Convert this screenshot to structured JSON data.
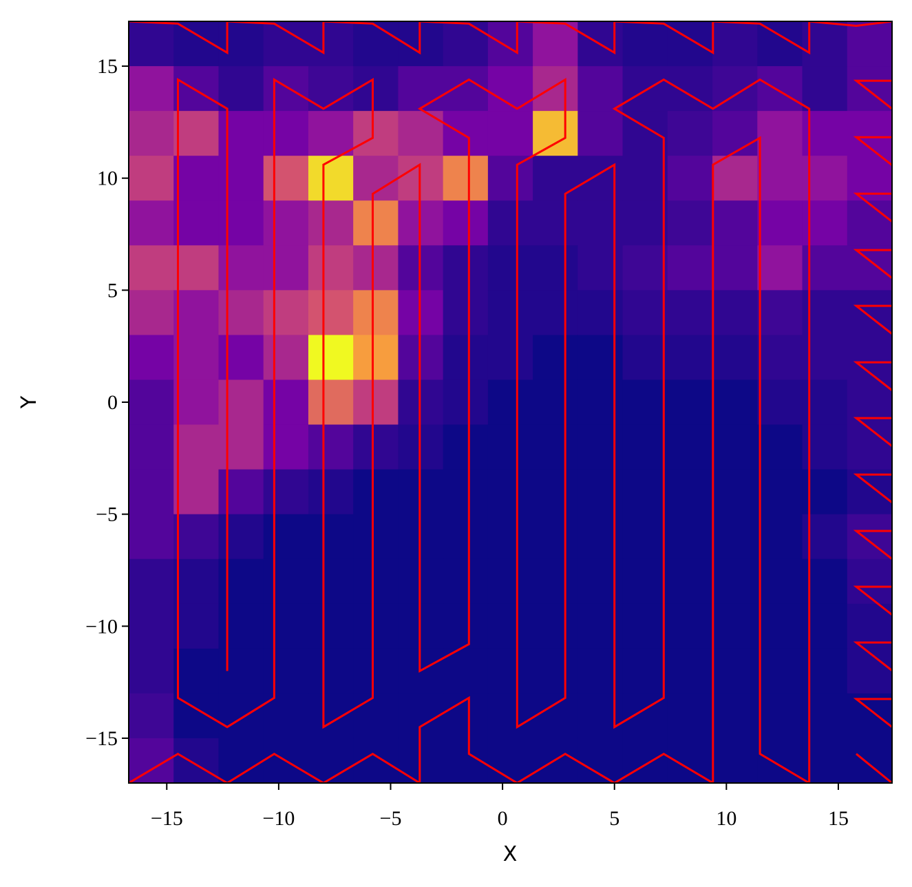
{
  "chart_data": {
    "type": "heatmap",
    "xlabel": "X",
    "ylabel": "Y",
    "xlim": [
      -16.7,
      17.4
    ],
    "ylim": [
      -17,
      17
    ],
    "xticks": [
      {
        "value": -15,
        "label": "−15"
      },
      {
        "value": -10,
        "label": "−10"
      },
      {
        "value": -5,
        "label": "−5"
      },
      0,
      5,
      10,
      15
    ],
    "yticks": [
      {
        "value": -15,
        "label": "−15"
      },
      {
        "value": -10,
        "label": "−10"
      },
      {
        "value": -5,
        "label": "−5"
      },
      0,
      5,
      10,
      15
    ],
    "colormap": "plasma",
    "z": [
      [
        0.1,
        0.08,
        0.08,
        0.1,
        0.1,
        0.08,
        0.08,
        0.1,
        0.15,
        0.25,
        0.1,
        0.08,
        0.08,
        0.1,
        0.08,
        0.1,
        0.15
      ],
      [
        0.25,
        0.15,
        0.1,
        0.15,
        0.12,
        0.1,
        0.15,
        0.15,
        0.2,
        0.3,
        0.15,
        0.1,
        0.1,
        0.12,
        0.15,
        0.1,
        0.15
      ],
      [
        0.3,
        0.35,
        0.2,
        0.2,
        0.25,
        0.35,
        0.3,
        0.2,
        0.2,
        0.6,
        0.15,
        0.1,
        0.12,
        0.15,
        0.25,
        0.2,
        0.2
      ],
      [
        0.35,
        0.2,
        0.2,
        0.4,
        0.65,
        0.3,
        0.35,
        0.5,
        0.15,
        0.1,
        0.1,
        0.1,
        0.15,
        0.3,
        0.25,
        0.25,
        0.2
      ],
      [
        0.25,
        0.2,
        0.2,
        0.25,
        0.3,
        0.5,
        0.25,
        0.2,
        0.1,
        0.1,
        0.1,
        0.1,
        0.12,
        0.15,
        0.2,
        0.2,
        0.15
      ],
      [
        0.35,
        0.35,
        0.25,
        0.25,
        0.35,
        0.3,
        0.15,
        0.1,
        0.08,
        0.08,
        0.1,
        0.12,
        0.15,
        0.15,
        0.25,
        0.15,
        0.15
      ],
      [
        0.3,
        0.25,
        0.3,
        0.35,
        0.4,
        0.5,
        0.2,
        0.1,
        0.08,
        0.08,
        0.08,
        0.1,
        0.1,
        0.1,
        0.12,
        0.1,
        0.1
      ],
      [
        0.2,
        0.25,
        0.2,
        0.3,
        0.7,
        0.55,
        0.15,
        0.08,
        0.08,
        0.05,
        0.05,
        0.08,
        0.08,
        0.08,
        0.1,
        0.1,
        0.1
      ],
      [
        0.15,
        0.25,
        0.3,
        0.2,
        0.45,
        0.35,
        0.1,
        0.08,
        0.05,
        0.05,
        0.05,
        0.05,
        0.05,
        0.05,
        0.08,
        0.08,
        0.1
      ],
      [
        0.15,
        0.3,
        0.3,
        0.2,
        0.15,
        0.1,
        0.08,
        0.05,
        0.05,
        0.05,
        0.05,
        0.05,
        0.05,
        0.05,
        0.05,
        0.08,
        0.1
      ],
      [
        0.15,
        0.3,
        0.15,
        0.1,
        0.08,
        0.05,
        0.05,
        0.05,
        0.05,
        0.05,
        0.05,
        0.05,
        0.05,
        0.05,
        0.05,
        0.05,
        0.08
      ],
      [
        0.15,
        0.12,
        0.08,
        0.05,
        0.05,
        0.05,
        0.05,
        0.05,
        0.05,
        0.05,
        0.05,
        0.05,
        0.05,
        0.05,
        0.05,
        0.08,
        0.12
      ],
      [
        0.1,
        0.08,
        0.05,
        0.05,
        0.05,
        0.05,
        0.05,
        0.05,
        0.05,
        0.05,
        0.05,
        0.05,
        0.05,
        0.05,
        0.05,
        0.05,
        0.1
      ],
      [
        0.1,
        0.08,
        0.05,
        0.05,
        0.05,
        0.05,
        0.05,
        0.05,
        0.05,
        0.05,
        0.05,
        0.05,
        0.05,
        0.05,
        0.05,
        0.05,
        0.08
      ],
      [
        0.1,
        0.05,
        0.05,
        0.05,
        0.05,
        0.05,
        0.05,
        0.05,
        0.05,
        0.05,
        0.05,
        0.05,
        0.05,
        0.05,
        0.05,
        0.05,
        0.08
      ],
      [
        0.12,
        0.05,
        0.05,
        0.05,
        0.05,
        0.05,
        0.05,
        0.05,
        0.05,
        0.05,
        0.05,
        0.05,
        0.05,
        0.05,
        0.05,
        0.05,
        0.05
      ],
      [
        0.15,
        0.08,
        0.05,
        0.05,
        0.05,
        0.05,
        0.05,
        0.05,
        0.05,
        0.05,
        0.05,
        0.05,
        0.05,
        0.05,
        0.05,
        0.05,
        0.05
      ]
    ],
    "overlay": {
      "type": "line",
      "color": "#ff0000",
      "x": [
        -12.3,
        -12.3,
        -14.5,
        -14.5,
        -12.3,
        -10.2,
        -10.2,
        -8.0,
        -5.8,
        -5.8,
        -8.0,
        -8.0,
        -5.8,
        -5.8,
        -3.7,
        -3.7,
        -1.5,
        -1.5,
        -3.7,
        -1.5,
        0.65,
        2.8,
        2.8,
        0.65,
        0.65,
        2.8,
        2.8,
        5.0,
        5.0,
        7.2,
        7.2,
        5.0,
        7.2,
        9.4,
        11.5,
        13.7,
        13.7,
        11.5,
        11.5,
        9.4,
        9.4,
        7.2,
        5.0,
        2.8,
        0.65,
        -1.5,
        -1.5,
        -3.7,
        -3.7,
        -5.8,
        -8.0,
        -10.2,
        -12.3,
        -14.5,
        -16.7,
        null,
        -16.7,
        -14.5,
        -12.3,
        -12.3,
        -10.2,
        -8.0,
        -8.0,
        -5.8,
        -3.7,
        -3.7,
        -1.5,
        0.65,
        0.65,
        2.8,
        5.0,
        5.0,
        7.2,
        9.4,
        9.4,
        11.5,
        13.7,
        13.7,
        15.8,
        17.4,
        null,
        17.4,
        15.8,
        17.4,
        null,
        17.4,
        15.8,
        17.4,
        null,
        17.4,
        15.8,
        17.4,
        null,
        17.4,
        15.8,
        17.4,
        null,
        17.4,
        15.8,
        17.4,
        null,
        17.4,
        15.8,
        17.4,
        null,
        17.4,
        15.8,
        17.4,
        null,
        17.4,
        15.8,
        17.4,
        null,
        17.4,
        15.8,
        17.4,
        null,
        17.4,
        15.8,
        17.4,
        null,
        17.4,
        15.8,
        17.4,
        null,
        17.4,
        15.8,
        17.4,
        null,
        15.8,
        17.4
      ],
      "y": [
        -12.0,
        13.1,
        14.4,
        -13.2,
        -14.5,
        -13.2,
        14.4,
        13.1,
        14.4,
        11.8,
        10.6,
        -14.5,
        -13.2,
        9.3,
        10.6,
        -12.0,
        -10.8,
        11.8,
        13.1,
        14.4,
        13.1,
        14.4,
        11.8,
        10.6,
        -14.5,
        -13.2,
        9.3,
        10.6,
        -14.5,
        -13.2,
        11.8,
        13.1,
        14.4,
        13.1,
        14.4,
        13.1,
        -17,
        -15.7,
        11.8,
        10.6,
        -17,
        -15.7,
        -17,
        -15.7,
        -17,
        -15.7,
        -13.2,
        -14.5,
        -17,
        -15.7,
        -17,
        -15.7,
        -17,
        -15.7,
        -17,
        null,
        17,
        16.9,
        15.6,
        17,
        16.9,
        15.6,
        17,
        16.9,
        15.6,
        17,
        16.9,
        15.6,
        17,
        16.9,
        15.6,
        17,
        16.9,
        15.6,
        17,
        16.9,
        15.6,
        17,
        16.8,
        17,
        null,
        14.35,
        14.35,
        13.1,
        null,
        11.83,
        11.83,
        10.58,
        null,
        9.31,
        9.31,
        8.06,
        null,
        6.79,
        6.79,
        5.54,
        null,
        4.3,
        4.3,
        3.05,
        null,
        1.78,
        1.78,
        0.53,
        null,
        -0.71,
        -0.71,
        -1.96,
        null,
        -3.23,
        -3.23,
        -4.48,
        null,
        -5.75,
        -5.75,
        -7.0,
        null,
        -8.24,
        -8.24,
        -9.49,
        null,
        -10.73,
        -10.73,
        -11.98,
        null,
        -13.25,
        -13.25,
        -14.5,
        null,
        -15.7,
        -17
      ]
    }
  }
}
